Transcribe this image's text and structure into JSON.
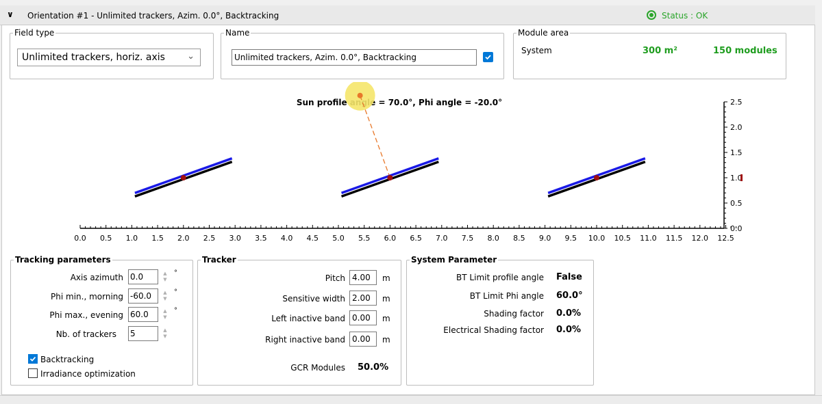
{
  "header": {
    "title": "Orientation #1 - Unlimited trackers, Azim. 0.0°, Backtracking",
    "status": "Status : OK"
  },
  "field_type": {
    "legend": "Field type",
    "selected": "Unlimited trackers, horiz. axis"
  },
  "name": {
    "legend": "Name",
    "value": "Unlimited trackers, Azim. 0.0°, Backtracking",
    "checked": true
  },
  "module_area": {
    "legend": "Module area",
    "label": "System",
    "area": "300 m²",
    "modules": "150 modules"
  },
  "diagram": {
    "title": "Sun profile angle = 70.0°, Phi angle = -20.0°",
    "x_ticks": [
      "0.0",
      "0.5",
      "1.0",
      "1.5",
      "2.0",
      "2.5",
      "3.0",
      "3.5",
      "4.0",
      "4.5",
      "5.0",
      "5.5",
      "6.0",
      "6.5",
      "7.0",
      "7.5",
      "8.0",
      "8.5",
      "9.0",
      "9.5",
      "10.0",
      "10.5",
      "11.0",
      "11.5",
      "12.0",
      "12.5"
    ],
    "y_ticks": [
      "0.0",
      "0.5",
      "1.0",
      "1.5",
      "2.0",
      "2.5"
    ],
    "tracker_centers_x": [
      2.0,
      6.0,
      10.0
    ],
    "axis_height": 1.0,
    "phi_angle": -20.0,
    "module_width": 2.0,
    "sun_profile_angle": 70.0,
    "xlim": [
      0.0,
      12.75
    ],
    "ylim": [
      0.0,
      2.5
    ]
  },
  "tracking": {
    "legend": "Tracking parameters",
    "azimuth_label": "Axis azimuth",
    "azimuth": "0.0",
    "phi_min_label": "Phi min., morning",
    "phi_min": "-60.0",
    "phi_max_label": "Phi max., evening",
    "phi_max": "60.0",
    "nb_label": "Nb. of trackers",
    "nb": "5",
    "deg": "°",
    "backtracking_label": "Backtracking",
    "backtracking": true,
    "irradiance_label": "Irradiance optimization",
    "irradiance": false
  },
  "tracker": {
    "legend": "Tracker",
    "pitch_label": "Pitch",
    "pitch": "4.00",
    "sens_width_label": "Sensitive width",
    "sens_width": "2.00",
    "left_band_label": "Left inactive band",
    "left_band": "0.00",
    "right_band_label": "Right inactive band",
    "right_band": "0.00",
    "unit": "m",
    "gcr_label": "GCR Modules",
    "gcr": "50.0%"
  },
  "system": {
    "legend": "System Parameter",
    "bt_profile_label": "BT Limit profile angle",
    "bt_profile": "False",
    "bt_phi_label": "BT Limit Phi angle",
    "bt_phi": "60.0°",
    "shading_label": "Shading factor",
    "shading": "0.0%",
    "elec_shading_label": "Electrical Shading factor",
    "elec_shading": "0.0%"
  },
  "colors": {
    "module_blue": "#1a1ae6",
    "module_black": "#000000",
    "axis_dot": "#a01010",
    "sun": "#f5e66a",
    "sun_ray": "#e8782a",
    "status_green": "#2aa52a"
  }
}
